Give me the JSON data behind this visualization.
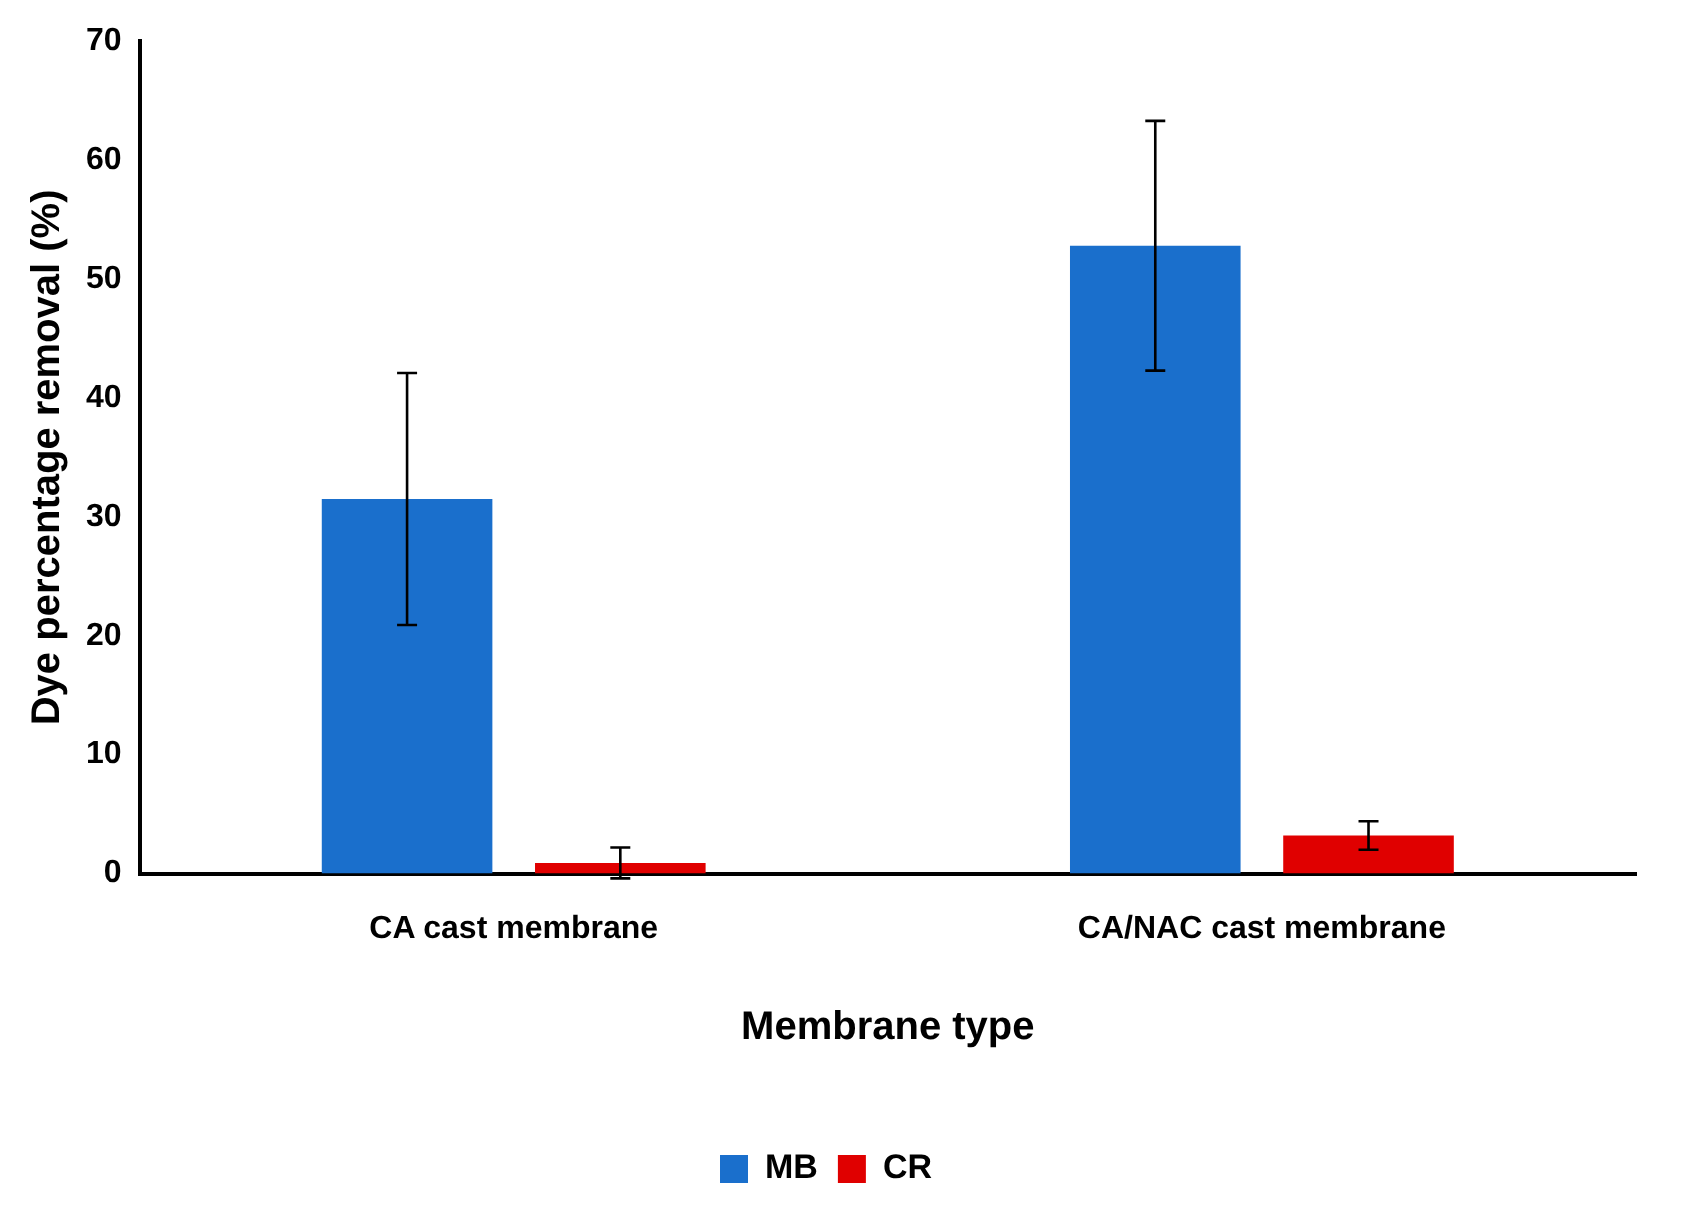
{
  "chart_data": {
    "type": "bar",
    "xlabel": "Membrane type",
    "ylabel": "Dye percentage removal (%)",
    "categories": [
      "CA cast membrane",
      "CA/NAC cast membrane"
    ],
    "series": [
      {
        "name": "MB",
        "color": "#1a6fcc",
        "values": [
          31.5,
          52.8
        ],
        "errors": [
          10.6,
          10.5
        ]
      },
      {
        "name": "CR",
        "color": "#e00000",
        "values": [
          0.9,
          3.2
        ],
        "errors": [
          1.3,
          1.2
        ]
      }
    ],
    "ylim": [
      0,
      70
    ],
    "yticks": [
      0,
      10,
      20,
      30,
      40,
      50,
      60,
      70
    ],
    "grid": false,
    "legend": "bottom"
  }
}
